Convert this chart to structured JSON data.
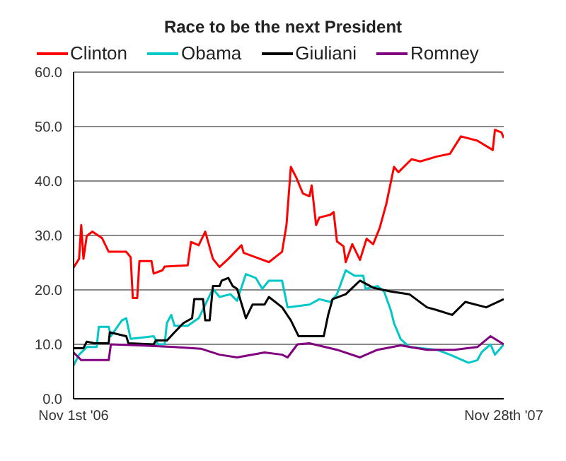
{
  "chart_data": {
    "type": "line",
    "title": "Race to be the next President",
    "legend": "top",
    "grid": "y",
    "marker": "none",
    "line_style": "solid",
    "xlim": [
      "2006-11-01",
      "2007-11-28"
    ],
    "xticks": [
      {
        "value": "2006-11-01",
        "label": "Nov 1st '06"
      },
      {
        "value": "2007-11-28",
        "label": "Nov 28th '07"
      }
    ],
    "ylim": [
      0,
      60
    ],
    "yticks": [
      {
        "value": 0,
        "label": "0.0"
      },
      {
        "value": 10,
        "label": "10.0"
      },
      {
        "value": 20,
        "label": "20.0"
      },
      {
        "value": 30,
        "label": "30.0"
      },
      {
        "value": 40,
        "label": "40.0"
      },
      {
        "value": 50,
        "label": "50.0"
      },
      {
        "value": 60,
        "label": "60.0"
      }
    ],
    "series": [
      {
        "name": "Clinton",
        "color": "#ff0000",
        "x": [
          "2006-11-01",
          "2006-11-06",
          "2006-11-08",
          "2006-11-10",
          "2006-11-13",
          "2006-11-18",
          "2006-11-27",
          "2006-12-03",
          "2006-12-19",
          "2006-12-23",
          "2006-12-25",
          "2006-12-29",
          "2006-12-31",
          "2007-01-11",
          "2007-01-13",
          "2007-01-21",
          "2007-01-23",
          "2007-02-13",
          "2007-02-16",
          "2007-02-23",
          "2007-03-01",
          "2007-03-08",
          "2007-03-14",
          "2007-03-22",
          "2007-04-03",
          "2007-04-05",
          "2007-04-16",
          "2007-04-28",
          "2007-05-10",
          "2007-05-14",
          "2007-05-18",
          "2007-05-23",
          "2007-05-29",
          "2007-06-04",
          "2007-06-06",
          "2007-06-10",
          "2007-06-13",
          "2007-06-23",
          "2007-06-26",
          "2007-06-29",
          "2007-07-05",
          "2007-07-07",
          "2007-07-13",
          "2007-07-20",
          "2007-07-26",
          "2007-08-01",
          "2007-08-07",
          "2007-08-13",
          "2007-08-20",
          "2007-08-24",
          "2007-09-05",
          "2007-09-13",
          "2007-09-28",
          "2007-10-10",
          "2007-10-20",
          "2007-11-04",
          "2007-11-18",
          "2007-11-20",
          "2007-11-26",
          "2007-11-28"
        ],
        "values": [
          24.1,
          25.7,
          31.9,
          25.7,
          29.9,
          30.7,
          29.5,
          27.0,
          27.0,
          26.0,
          18.5,
          18.5,
          25.3,
          25.3,
          23.0,
          23.6,
          24.3,
          24.5,
          28.8,
          28.2,
          30.7,
          25.7,
          24.2,
          25.7,
          28.2,
          26.8,
          26.0,
          25.1,
          27.0,
          31.9,
          42.6,
          40.6,
          37.7,
          37.2,
          39.2,
          31.9,
          33.3,
          33.8,
          34.3,
          28.9,
          28.0,
          25.1,
          28.4,
          25.5,
          29.4,
          28.4,
          31.4,
          35.8,
          42.6,
          41.6,
          44.0,
          43.6,
          44.5,
          45.0,
          48.2,
          47.4,
          45.7,
          49.4,
          48.9,
          47.9
        ]
      },
      {
        "name": "Obama",
        "color": "#00c8c8",
        "x": [
          "2006-11-01",
          "2006-11-06",
          "2006-11-13",
          "2006-11-22",
          "2006-11-24",
          "2006-12-03",
          "2006-12-05",
          "2006-12-15",
          "2006-12-19",
          "2006-12-23",
          "2007-01-13",
          "2007-01-17",
          "2007-01-23",
          "2007-01-25",
          "2007-01-29",
          "2007-02-01",
          "2007-02-13",
          "2007-02-23",
          "2007-03-01",
          "2007-03-08",
          "2007-03-14",
          "2007-03-24",
          "2007-03-30",
          "2007-04-07",
          "2007-04-16",
          "2007-04-22",
          "2007-04-28",
          "2007-05-10",
          "2007-05-15",
          "2007-06-04",
          "2007-06-13",
          "2007-06-23",
          "2007-06-29",
          "2007-07-07",
          "2007-07-15",
          "2007-07-23",
          "2007-07-25",
          "2007-08-05",
          "2007-08-11",
          "2007-08-17",
          "2007-08-20",
          "2007-08-26",
          "2007-09-03",
          "2007-09-28",
          "2007-10-10",
          "2007-10-27",
          "2007-11-04",
          "2007-11-08",
          "2007-11-16",
          "2007-11-20",
          "2007-11-26",
          "2007-11-28"
        ],
        "values": [
          6.1,
          8.1,
          9.5,
          9.5,
          13.2,
          13.2,
          11.5,
          14.4,
          14.8,
          11.0,
          11.5,
          10.0,
          10.0,
          13.9,
          15.4,
          13.4,
          13.4,
          14.8,
          17.3,
          20.2,
          18.7,
          19.2,
          18.0,
          22.9,
          22.2,
          20.2,
          21.7,
          21.7,
          16.8,
          17.3,
          18.3,
          17.8,
          19.2,
          23.6,
          22.6,
          22.6,
          20.2,
          20.7,
          19.7,
          16.3,
          13.9,
          11.0,
          9.5,
          9.0,
          8.1,
          6.6,
          7.1,
          8.6,
          10.0,
          8.1,
          9.5,
          10.0
        ]
      },
      {
        "name": "Giuliani",
        "color": "#000000",
        "x": [
          "2006-11-01",
          "2006-11-10",
          "2006-11-13",
          "2006-11-20",
          "2006-12-03",
          "2006-12-04",
          "2006-12-19",
          "2006-12-21",
          "2007-01-13",
          "2007-01-15",
          "2007-01-25",
          "2007-02-01",
          "2007-02-09",
          "2007-02-17",
          "2007-02-19",
          "2007-02-27",
          "2007-03-01",
          "2007-03-05",
          "2007-03-08",
          "2007-03-14",
          "2007-03-16",
          "2007-03-22",
          "2007-03-26",
          "2007-03-30",
          "2007-04-07",
          "2007-04-13",
          "2007-04-24",
          "2007-04-28",
          "2007-05-10",
          "2007-05-18",
          "2007-05-25",
          "2007-06-17",
          "2007-06-21",
          "2007-06-25",
          "2007-07-07",
          "2007-07-20",
          "2007-08-01",
          "2007-08-17",
          "2007-09-03",
          "2007-09-19",
          "2007-09-28",
          "2007-10-12",
          "2007-10-24",
          "2007-11-12",
          "2007-11-28"
        ],
        "values": [
          9.3,
          9.3,
          10.5,
          10.2,
          10.2,
          12.2,
          11.5,
          10.2,
          10.0,
          10.7,
          10.7,
          12.2,
          13.9,
          14.8,
          18.3,
          18.3,
          14.4,
          14.4,
          20.7,
          20.7,
          21.7,
          22.2,
          20.7,
          20.2,
          14.8,
          17.3,
          17.3,
          18.7,
          16.8,
          14.4,
          11.5,
          11.5,
          15.4,
          18.3,
          19.2,
          21.7,
          20.4,
          19.7,
          19.2,
          16.8,
          16.3,
          15.4,
          17.8,
          16.8,
          18.3
        ]
      },
      {
        "name": "Romney",
        "color": "#800080",
        "x": [
          "2006-11-01",
          "2006-11-08",
          "2006-12-03",
          "2006-12-05",
          "2006-12-31",
          "2007-02-01",
          "2007-02-25",
          "2007-03-14",
          "2007-03-30",
          "2007-04-24",
          "2007-05-10",
          "2007-05-15",
          "2007-05-24",
          "2007-06-04",
          "2007-06-29",
          "2007-07-20",
          "2007-08-05",
          "2007-08-26",
          "2007-09-19",
          "2007-10-14",
          "2007-11-04",
          "2007-11-16",
          "2007-11-28"
        ],
        "values": [
          8.5,
          7.1,
          7.1,
          10.0,
          9.8,
          9.5,
          9.2,
          8.1,
          7.6,
          8.5,
          8.1,
          7.6,
          10.0,
          10.2,
          9.0,
          7.6,
          9.0,
          9.8,
          9.0,
          9.0,
          9.5,
          11.5,
          10.0
        ]
      }
    ]
  }
}
